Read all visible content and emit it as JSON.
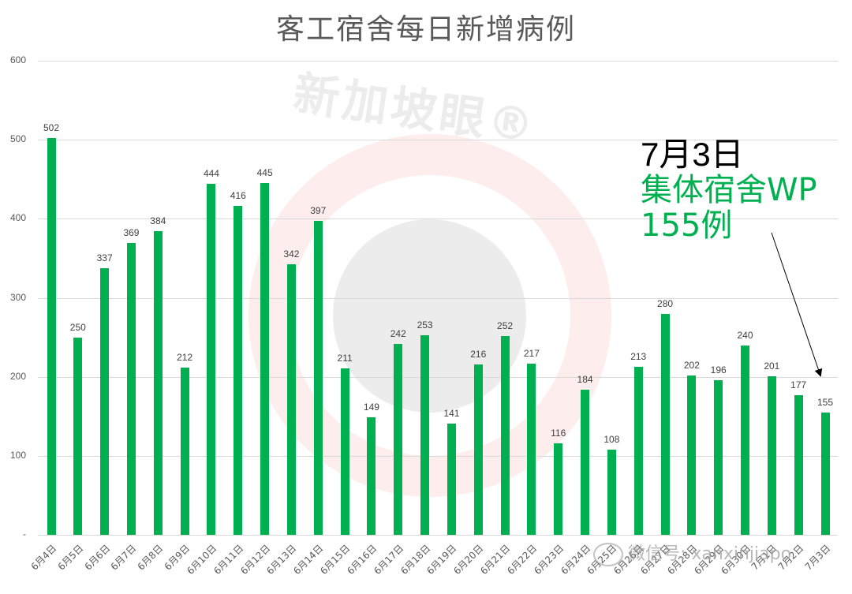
{
  "title": "客工宿舍每日新增病例",
  "watermark": {
    "brand": "新加坡眼®",
    "wechat": "微信号: xanxinjiapo"
  },
  "annotation": {
    "date": "7月3日",
    "line1": "集体宿舍WP",
    "line2": "155例",
    "date_color": "#000000",
    "text_color": "#00b050"
  },
  "colors": {
    "bar": "#00b050",
    "grid": "#d9d9d9",
    "axis_text": "#595959"
  },
  "chart_data": {
    "type": "bar",
    "title": "客工宿舍每日新增病例",
    "xlabel": "",
    "ylabel": "",
    "ylim": [
      0,
      600
    ],
    "yticks": [
      "-",
      "100",
      "200",
      "300",
      "400",
      "500",
      "600"
    ],
    "grid": true,
    "legend": null,
    "categories": [
      "6月4日",
      "6月5日",
      "6月6日",
      "6月7日",
      "6月8日",
      "6月9日",
      "6月10日",
      "6月11日",
      "6月12日",
      "6月13日",
      "6月14日",
      "6月15日",
      "6月16日",
      "6月17日",
      "6月18日",
      "6月19日",
      "6月20日",
      "6月21日",
      "6月22日",
      "6月23日",
      "6月24日",
      "6月25日",
      "6月26日",
      "6月27日",
      "6月28日",
      "6月29日",
      "6月30日",
      "7月1日",
      "7月2日",
      "7月3日"
    ],
    "values": [
      502,
      250,
      337,
      369,
      384,
      212,
      444,
      416,
      445,
      342,
      397,
      211,
      149,
      242,
      253,
      141,
      216,
      252,
      217,
      116,
      184,
      108,
      213,
      280,
      202,
      196,
      240,
      201,
      177,
      155
    ],
    "data_labels": true,
    "annotations": [
      {
        "target": "7月3日",
        "text": "7月3日 集体宿舍WP 155例"
      }
    ]
  }
}
